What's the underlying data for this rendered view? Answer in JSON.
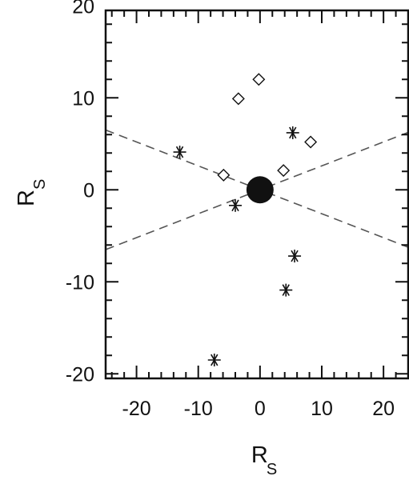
{
  "chart_data": {
    "type": "scatter",
    "xlabel": {
      "main": "R",
      "sub": "S"
    },
    "ylabel": {
      "main": "R",
      "sub": "S"
    },
    "xlim": [
      -25,
      24
    ],
    "ylim": [
      -20.5,
      19.5
    ],
    "x_ticks": [
      -20,
      -10,
      0,
      10,
      20
    ],
    "y_ticks": [
      20,
      10,
      0,
      -10,
      -20
    ],
    "x_minor_step": 2,
    "y_minor_step": 2,
    "grid": false,
    "series": [
      {
        "marker": "asterisk",
        "points": [
          [
            -13,
            4.1
          ],
          [
            5.3,
            6.2
          ],
          [
            -4,
            -1.7
          ],
          [
            5.6,
            -7.2
          ],
          [
            4.2,
            -10.9
          ],
          [
            -7.4,
            -18.5
          ]
        ]
      },
      {
        "marker": "diamond",
        "points": [
          [
            -0.2,
            12
          ],
          [
            -3.5,
            9.9
          ],
          [
            8.2,
            5.2
          ],
          [
            -5.9,
            1.6
          ],
          [
            3.8,
            2.1
          ]
        ]
      },
      {
        "marker": "filled-circle",
        "points": [
          [
            0,
            0
          ]
        ],
        "radius": 2.2
      }
    ],
    "lines": [
      {
        "style": "dashed",
        "slope": -0.26,
        "intercept": 0
      },
      {
        "style": "dashed",
        "slope": 0.26,
        "intercept": 0
      }
    ]
  },
  "colors": {
    "ink": "#111111",
    "background": "#ffffff"
  }
}
